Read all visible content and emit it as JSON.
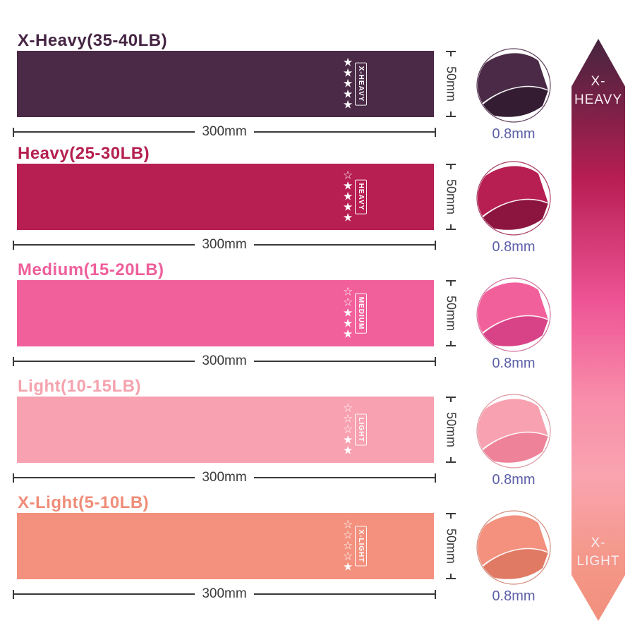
{
  "bands": [
    {
      "name": "x-heavy",
      "title": "X-Heavy(35-40LB)",
      "label": "X-HEAVY",
      "stars_filled": 5,
      "stars_total": 5,
      "color": "#4a2a46",
      "title_color": "#452544",
      "shade": "#341c33",
      "edge": "#5f3f5c",
      "width_label": "300mm",
      "height_label": "50mm",
      "thickness_label": "0.8mm"
    },
    {
      "name": "heavy",
      "title": "Heavy(25-30LB)",
      "label": "HEAVY",
      "stars_filled": 4,
      "stars_total": 5,
      "color": "#b71e52",
      "title_color": "#b5204f",
      "shade": "#8c1540",
      "edge": "#a93c62",
      "width_label": "300mm",
      "height_label": "50mm",
      "thickness_label": "0.8mm"
    },
    {
      "name": "medium",
      "title": "Medium(15-20LB)",
      "label": "MEDIUM",
      "stars_filled": 3,
      "stars_total": 5,
      "color": "#f2609c",
      "title_color": "#ee5f9b",
      "shade": "#d84387",
      "edge": "#d4719c",
      "width_label": "300mm",
      "height_label": "50mm",
      "thickness_label": "0.8mm"
    },
    {
      "name": "light",
      "title": "Light(10-15LB)",
      "label": "LIGHT",
      "stars_filled": 2,
      "stars_total": 5,
      "color": "#f8a1b0",
      "title_color": "#f4a3ae",
      "shade": "#ee8298",
      "edge": "#dd98a2",
      "width_label": "300mm",
      "height_label": "50mm",
      "thickness_label": "0.8mm"
    },
    {
      "name": "x-light",
      "title": "X-Light(5-10LB)",
      "label": "X-LIGHT",
      "stars_filled": 1,
      "stars_total": 5,
      "color": "#f3917e",
      "title_color": "#ef8d79",
      "shade": "#e07a64",
      "edge": "#d18d7c",
      "width_label": "300mm",
      "height_label": "50mm",
      "thickness_label": "0.8mm"
    }
  ],
  "dimension_color": "#3a3a3a",
  "thickness_text_color": "#5c60a8",
  "arrow": {
    "top_label_line1": "X-",
    "top_label_line2": "HEAVY",
    "bottom_label_line1": "X-",
    "bottom_label_line2": "LIGHT",
    "text_color": "#f7edf2",
    "gradient": [
      "#46253f",
      "#7c2147",
      "#b81e53",
      "#ee5495",
      "#f88eaa",
      "#f9a4b0",
      "#f5998c",
      "#f18f7c"
    ],
    "gradient_stops": [
      0,
      12,
      24,
      45,
      62,
      75,
      88,
      100
    ]
  }
}
